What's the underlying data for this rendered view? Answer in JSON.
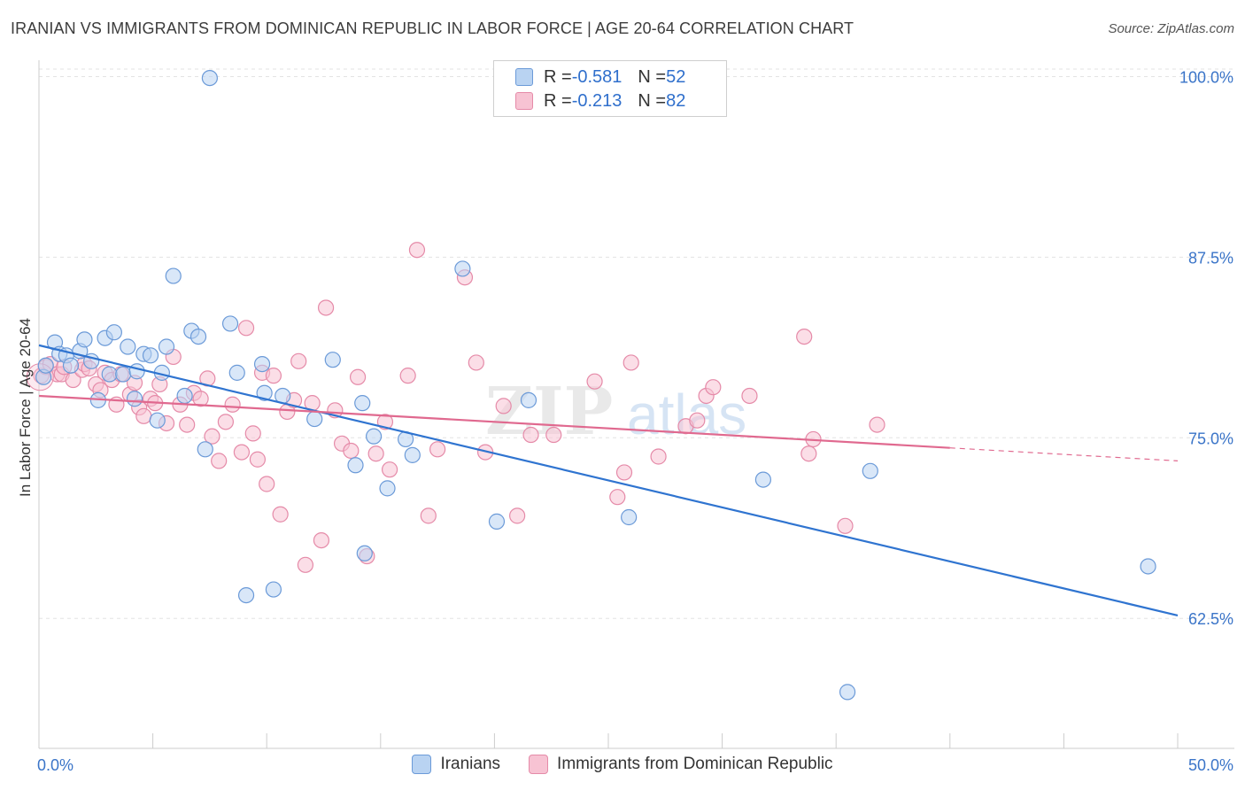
{
  "title": "IRANIAN VS IMMIGRANTS FROM DOMINICAN REPUBLIC IN LABOR FORCE | AGE 20-64 CORRELATION CHART",
  "source": "Source: ZipAtlas.com",
  "watermark": "ZIPatlas",
  "legend_top": {
    "rows": [
      {
        "r_label": "R = ",
        "r_value": "-0.581",
        "n_label": "N = ",
        "n_value": "52"
      },
      {
        "r_label": "R = ",
        "r_value": "-0.213",
        "n_label": "N = ",
        "n_value": "82"
      }
    ]
  },
  "colors": {
    "blue_fill": "#b9d3f2",
    "blue_stroke": "#6b9ad8",
    "blue_line": "#2f74d0",
    "pink_fill": "#f7c3d3",
    "pink_stroke": "#e58aa8",
    "pink_line": "#e0698f",
    "axis_label": "#3a74c8",
    "grid": "#e3e3e3"
  },
  "chart_data": {
    "type": "scatter",
    "title": "IRANIAN VS IMMIGRANTS FROM DOMINICAN REPUBLIC IN LABOR FORCE | AGE 20-64 CORRELATION CHART",
    "ylabel": "In Labor Force | Age 20-64",
    "xlabel": "",
    "xlim": [
      0,
      50
    ],
    "ylim": [
      53.5,
      101.5
    ],
    "x_tick_labels": [
      "0.0%",
      "50.0%"
    ],
    "y_ticks": [
      100.0,
      87.5,
      75.0,
      62.5
    ],
    "y_tick_labels": [
      "100.0%",
      "87.5%",
      "75.0%",
      "62.5%"
    ],
    "grid": true,
    "legend_placement": "bottom-center",
    "series": [
      {
        "name": "Iranians",
        "color": "blue",
        "r": -0.581,
        "n": 52,
        "trend": {
          "x": [
            0.0,
            50.0
          ],
          "y": [
            81.4,
            62.7
          ],
          "solid_until": 50.0
        },
        "points": [
          [
            0.2,
            79.2
          ],
          [
            0.3,
            80.0
          ],
          [
            0.7,
            81.6
          ],
          [
            0.9,
            80.8
          ],
          [
            1.2,
            80.7
          ],
          [
            1.4,
            80.0
          ],
          [
            1.8,
            81.0
          ],
          [
            2.0,
            81.8
          ],
          [
            2.3,
            80.3
          ],
          [
            2.6,
            77.6
          ],
          [
            2.9,
            81.9
          ],
          [
            3.1,
            79.4
          ],
          [
            3.3,
            82.3
          ],
          [
            3.7,
            79.4
          ],
          [
            3.9,
            81.3
          ],
          [
            4.2,
            77.7
          ],
          [
            4.3,
            79.6
          ],
          [
            4.6,
            80.8
          ],
          [
            4.9,
            80.7
          ],
          [
            5.2,
            76.2
          ],
          [
            5.4,
            79.5
          ],
          [
            5.6,
            81.3
          ],
          [
            5.9,
            86.2
          ],
          [
            6.4,
            77.9
          ],
          [
            6.7,
            82.4
          ],
          [
            7.0,
            82.0
          ],
          [
            7.3,
            74.2
          ],
          [
            7.5,
            99.9
          ],
          [
            8.4,
            82.9
          ],
          [
            8.7,
            79.5
          ],
          [
            9.1,
            64.1
          ],
          [
            9.8,
            80.1
          ],
          [
            9.9,
            78.1
          ],
          [
            10.3,
            64.5
          ],
          [
            10.7,
            77.9
          ],
          [
            12.1,
            76.3
          ],
          [
            12.9,
            80.4
          ],
          [
            13.9,
            73.1
          ],
          [
            14.2,
            77.4
          ],
          [
            14.3,
            67.0
          ],
          [
            14.7,
            75.1
          ],
          [
            15.3,
            71.5
          ],
          [
            16.1,
            74.9
          ],
          [
            16.4,
            73.8
          ],
          [
            18.6,
            86.7
          ],
          [
            20.1,
            69.2
          ],
          [
            21.5,
            77.6
          ],
          [
            25.9,
            69.5
          ],
          [
            31.8,
            72.1
          ],
          [
            35.5,
            57.4
          ],
          [
            36.5,
            72.7
          ],
          [
            48.7,
            66.1
          ]
        ]
      },
      {
        "name": "Immigrants from Dominican Republic",
        "color": "pink",
        "r": -0.213,
        "n": 82,
        "trend": {
          "x": [
            0.0,
            50.0
          ],
          "y": [
            77.9,
            73.4
          ],
          "solid_until": 40.0
        },
        "points": [
          [
            0.1,
            79.3
          ],
          [
            0.3,
            79.9
          ],
          [
            0.5,
            80.1
          ],
          [
            0.8,
            79.4
          ],
          [
            1.0,
            79.4
          ],
          [
            1.1,
            79.9
          ],
          [
            1.5,
            79.0
          ],
          [
            1.9,
            79.7
          ],
          [
            2.0,
            80.1
          ],
          [
            2.2,
            79.8
          ],
          [
            2.5,
            78.7
          ],
          [
            2.7,
            78.3
          ],
          [
            2.9,
            79.5
          ],
          [
            3.2,
            79.0
          ],
          [
            3.4,
            77.3
          ],
          [
            3.6,
            79.4
          ],
          [
            4.0,
            78.0
          ],
          [
            4.2,
            78.8
          ],
          [
            4.4,
            77.1
          ],
          [
            4.6,
            76.5
          ],
          [
            4.9,
            77.7
          ],
          [
            5.1,
            77.4
          ],
          [
            5.3,
            78.7
          ],
          [
            5.6,
            76.0
          ],
          [
            5.9,
            80.6
          ],
          [
            6.2,
            77.3
          ],
          [
            6.5,
            75.9
          ],
          [
            6.8,
            78.1
          ],
          [
            7.1,
            77.7
          ],
          [
            7.4,
            79.1
          ],
          [
            7.6,
            75.1
          ],
          [
            7.9,
            73.4
          ],
          [
            8.2,
            76.1
          ],
          [
            8.5,
            77.3
          ],
          [
            8.9,
            74.0
          ],
          [
            9.1,
            82.6
          ],
          [
            9.4,
            75.3
          ],
          [
            9.6,
            73.5
          ],
          [
            9.8,
            79.5
          ],
          [
            10.0,
            71.8
          ],
          [
            10.3,
            79.3
          ],
          [
            10.6,
            69.7
          ],
          [
            10.9,
            76.8
          ],
          [
            11.2,
            77.6
          ],
          [
            11.4,
            80.3
          ],
          [
            11.7,
            66.2
          ],
          [
            12.0,
            77.4
          ],
          [
            12.4,
            67.9
          ],
          [
            12.6,
            84.0
          ],
          [
            13.0,
            76.9
          ],
          [
            13.3,
            74.6
          ],
          [
            13.7,
            74.1
          ],
          [
            14.0,
            79.2
          ],
          [
            14.4,
            66.8
          ],
          [
            14.8,
            73.9
          ],
          [
            15.2,
            76.1
          ],
          [
            15.4,
            72.8
          ],
          [
            16.2,
            79.3
          ],
          [
            16.6,
            88.0
          ],
          [
            17.1,
            69.6
          ],
          [
            17.5,
            74.2
          ],
          [
            18.7,
            86.1
          ],
          [
            19.2,
            80.2
          ],
          [
            19.6,
            74.0
          ],
          [
            20.4,
            77.2
          ],
          [
            21.0,
            69.6
          ],
          [
            21.6,
            75.2
          ],
          [
            22.6,
            75.2
          ],
          [
            24.4,
            78.9
          ],
          [
            25.4,
            70.9
          ],
          [
            25.7,
            72.6
          ],
          [
            26.0,
            80.2
          ],
          [
            27.2,
            73.7
          ],
          [
            28.4,
            75.8
          ],
          [
            28.9,
            76.2
          ],
          [
            29.3,
            77.9
          ],
          [
            29.6,
            78.5
          ],
          [
            31.2,
            77.9
          ],
          [
            33.6,
            82.0
          ],
          [
            33.8,
            73.9
          ],
          [
            34.0,
            74.9
          ],
          [
            35.4,
            68.9
          ],
          [
            36.8,
            75.9
          ]
        ]
      }
    ]
  },
  "legend_bottom": {
    "items": [
      {
        "label": "Iranians"
      },
      {
        "label": "Immigrants from Dominican Republic"
      }
    ]
  }
}
